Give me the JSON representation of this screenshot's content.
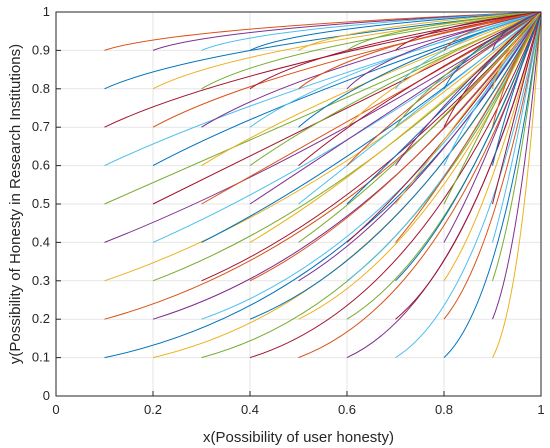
{
  "chart_data": {
    "type": "line",
    "title": "",
    "xlabel": "x(Possibility of user honesty)",
    "ylabel": "y(Possibility of Honesty in Research Institutions)",
    "xlim": [
      0,
      1
    ],
    "ylim": [
      0,
      1
    ],
    "x_ticks": [
      "0",
      "0.2",
      "0.4",
      "0.6",
      "0.8",
      "1"
    ],
    "y_ticks": [
      "0",
      "0.1",
      "0.2",
      "0.3",
      "0.4",
      "0.5",
      "0.6",
      "0.7",
      "0.8",
      "0.9",
      "1"
    ],
    "grid": true,
    "legend": "none",
    "description_of_series": "Evolution trajectories from every initial point (x0, y0) with x0, y0 in {0.1, ..., 0.9}; each trajectory converges to (1, 1).",
    "initial_x": [
      0.1,
      0.2,
      0.3,
      0.4,
      0.5,
      0.6,
      0.7,
      0.8,
      0.9
    ],
    "initial_y": [
      0.1,
      0.2,
      0.3,
      0.4,
      0.5,
      0.6,
      0.7,
      0.8,
      0.9
    ],
    "end_point": [
      1,
      1
    ],
    "colors": [
      "#0072BD",
      "#D95319",
      "#EDB120",
      "#7E2F8E",
      "#77AC30",
      "#4DBEEE",
      "#A2142F"
    ]
  }
}
